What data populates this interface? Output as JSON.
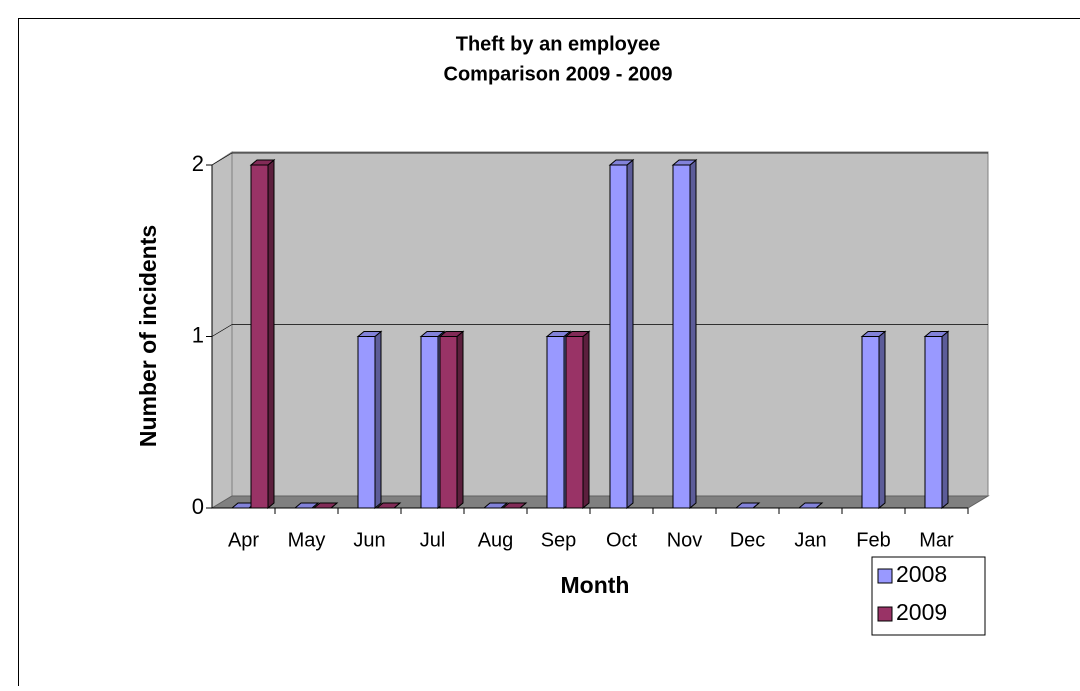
{
  "chart_data": {
    "type": "bar3d",
    "title": "Theft by an employee",
    "subtitle": "Comparison 2009 - 2009",
    "x_label": "Month",
    "y_label": "Number of incidents",
    "categories": [
      "Apr",
      "May",
      "Jun",
      "Jul",
      "Aug",
      "Sep",
      "Oct",
      "Nov",
      "Dec",
      "Jan",
      "Feb",
      "Mar"
    ],
    "series": [
      {
        "name": "2008",
        "color": "#9999ff",
        "values": [
          0,
          0,
          1,
          1,
          0,
          1,
          2,
          2,
          0,
          0,
          1,
          1
        ]
      },
      {
        "name": "2009",
        "color": "#993366",
        "values": [
          2,
          0,
          0,
          1,
          0,
          1,
          null,
          null,
          null,
          null,
          null,
          null
        ]
      }
    ],
    "ylim": [
      0,
      2
    ],
    "yticks": [
      0,
      1,
      2
    ],
    "grid": true,
    "legend": "bottom-right"
  }
}
